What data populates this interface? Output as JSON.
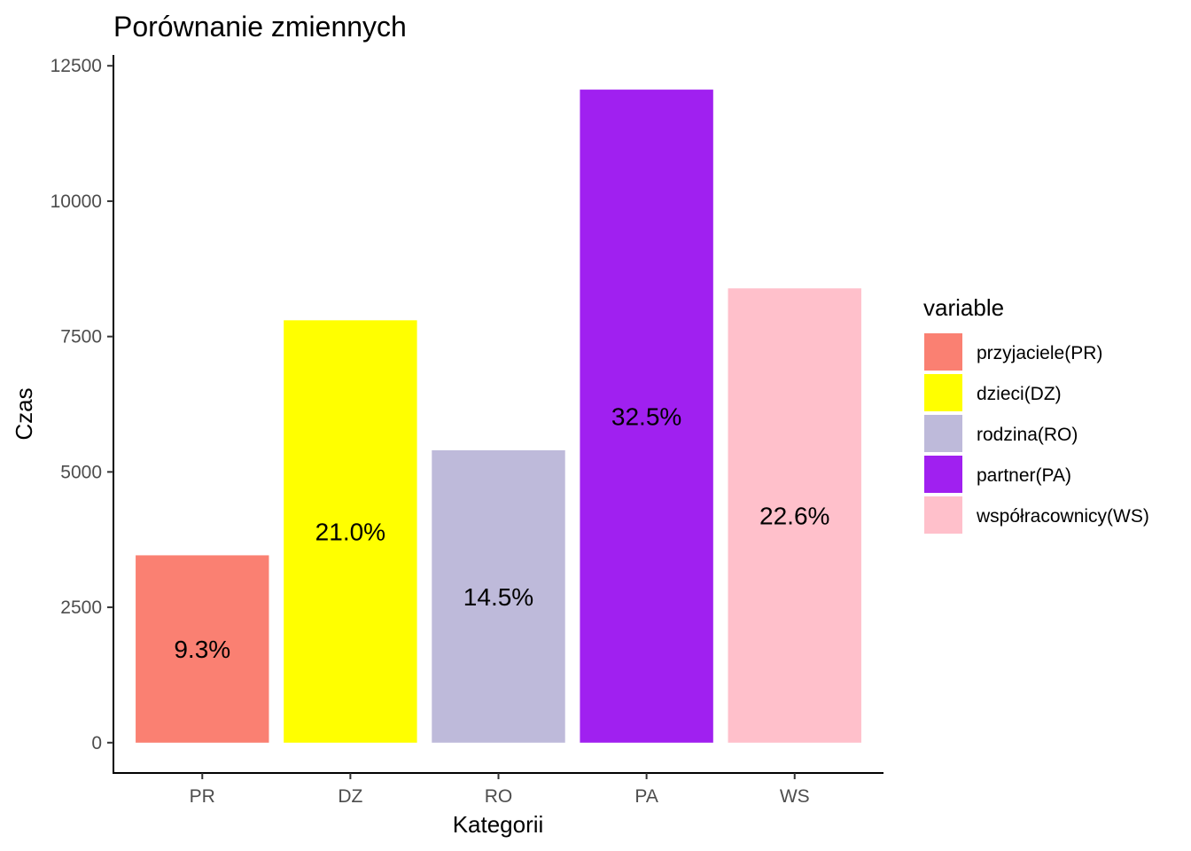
{
  "chart_data": {
    "type": "bar",
    "title": "Porównanie zmiennych",
    "xlabel": "Kategorii",
    "ylabel": "Czas",
    "categories": [
      "PR",
      "DZ",
      "RO",
      "PA",
      "WS"
    ],
    "values": [
      3460,
      7800,
      5400,
      12060,
      8390
    ],
    "value_labels": [
      "9.3%",
      "21.0%",
      "14.5%",
      "32.5%",
      "22.6%"
    ],
    "colors": [
      "#FA8072",
      "#FFFF00",
      "#BEBADA",
      "#A020F0",
      "#FFC0CB"
    ],
    "ylim": [
      -560,
      12700
    ],
    "yticks": [
      0,
      2500,
      5000,
      7500,
      10000,
      12500
    ],
    "grid": false,
    "legend": {
      "title": "variable",
      "position": "right",
      "entries": [
        "przyjaciele(PR)",
        "dzieci(DZ)",
        "rodzina(RO)",
        "partner(PA)",
        "współracownicy(WS)"
      ]
    }
  }
}
